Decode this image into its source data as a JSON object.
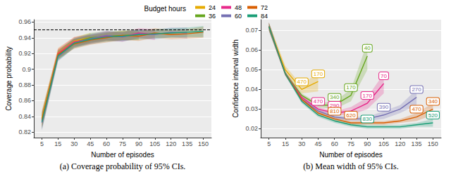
{
  "chart_data": [
    {
      "type": "line",
      "title": "(a) Coverage probability of 95% CIs.",
      "x_label": "Number of episodes",
      "y_label": "Coverage probability",
      "legend": "top",
      "legend_title": "Budget hours",
      "grid": true,
      "reference_line": 0.95,
      "categories": [
        "5",
        "15",
        "30",
        "45",
        "60",
        "75",
        "90",
        "105",
        "120",
        "135",
        "150"
      ],
      "ylim": [
        0.813,
        0.963
      ],
      "yticks": [
        0.82,
        0.84,
        0.86,
        0.88,
        0.9,
        0.92,
        0.94,
        0.96
      ],
      "series": [
        {
          "name": "24",
          "color": "#E6AB02",
          "values": [
            0.838,
            0.921,
            0.936,
            0.94,
            null,
            null,
            null,
            null,
            null,
            null,
            null
          ],
          "lower": [
            0.828,
            0.915,
            0.931,
            0.934,
            null,
            null,
            null,
            null,
            null,
            null,
            null
          ],
          "upper": [
            0.848,
            0.927,
            0.941,
            0.946,
            null,
            null,
            null,
            null,
            null,
            null,
            null
          ]
        },
        {
          "name": "36",
          "color": "#66A61E",
          "values": [
            0.835,
            0.918,
            0.934,
            0.94,
            0.942,
            0.943,
            0.944,
            null,
            null,
            null,
            null
          ],
          "lower": [
            0.825,
            0.912,
            0.928,
            0.934,
            0.936,
            0.937,
            0.937,
            null,
            null,
            null,
            null
          ],
          "upper": [
            0.845,
            0.924,
            0.94,
            0.946,
            0.948,
            0.949,
            0.951,
            null,
            null,
            null,
            null
          ]
        },
        {
          "name": "48",
          "color": "#E7298A",
          "values": [
            0.834,
            0.92,
            0.935,
            0.938,
            0.942,
            0.941,
            0.946,
            0.944,
            null,
            null,
            null
          ],
          "lower": [
            0.824,
            0.914,
            0.929,
            0.932,
            0.936,
            0.935,
            0.94,
            0.937,
            null,
            null,
            null
          ],
          "upper": [
            0.844,
            0.926,
            0.941,
            0.944,
            0.948,
            0.947,
            0.952,
            0.951,
            null,
            null,
            null
          ]
        },
        {
          "name": "60",
          "color": "#7570B3",
          "values": [
            0.832,
            0.916,
            0.933,
            0.939,
            0.943,
            0.941,
            0.945,
            0.944,
            0.947,
            0.946,
            null
          ],
          "lower": [
            0.822,
            0.91,
            0.927,
            0.933,
            0.937,
            0.935,
            0.939,
            0.938,
            0.941,
            0.939,
            null
          ],
          "upper": [
            0.842,
            0.922,
            0.939,
            0.945,
            0.949,
            0.947,
            0.951,
            0.95,
            0.953,
            0.953,
            null
          ]
        },
        {
          "name": "72",
          "color": "#D95F02",
          "values": [
            0.836,
            0.919,
            0.932,
            0.937,
            0.94,
            0.943,
            0.942,
            0.946,
            0.944,
            0.945,
            0.947
          ],
          "lower": [
            0.826,
            0.913,
            0.926,
            0.931,
            0.934,
            0.937,
            0.936,
            0.94,
            0.938,
            0.939,
            0.94
          ],
          "upper": [
            0.846,
            0.925,
            0.938,
            0.943,
            0.946,
            0.949,
            0.948,
            0.952,
            0.95,
            0.951,
            0.954
          ]
        },
        {
          "name": "84",
          "color": "#1B9E77",
          "values": [
            0.833,
            0.917,
            0.933,
            0.938,
            0.941,
            0.942,
            0.944,
            0.945,
            0.946,
            0.947,
            0.948
          ],
          "lower": [
            0.823,
            0.911,
            0.927,
            0.932,
            0.935,
            0.936,
            0.938,
            0.939,
            0.94,
            0.941,
            0.941
          ],
          "upper": [
            0.843,
            0.923,
            0.939,
            0.944,
            0.947,
            0.948,
            0.95,
            0.951,
            0.952,
            0.953,
            0.955
          ]
        }
      ]
    },
    {
      "type": "line",
      "title": "(b) Mean width of 95% CIs.",
      "x_label": "Number of episodes",
      "y_label": "Confidence interval width",
      "grid": true,
      "categories": [
        "5",
        "15",
        "30",
        "45",
        "60",
        "75",
        "90",
        "105",
        "120",
        "135",
        "150"
      ],
      "ylim": [
        0.0155,
        0.0755
      ],
      "yticks": [
        0.02,
        0.03,
        0.04,
        0.05,
        0.06,
        0.07
      ],
      "series": [
        {
          "name": "24",
          "color": "#E6AB02",
          "values": [
            0.072,
            0.05,
            0.04,
            0.044,
            null,
            null,
            null,
            null,
            null,
            null,
            null
          ],
          "lower": [
            0.07,
            0.048,
            0.038,
            0.039,
            null,
            null,
            null,
            null,
            null,
            null,
            null
          ],
          "upper": [
            0.074,
            0.052,
            0.042,
            0.049,
            null,
            null,
            null,
            null,
            null,
            null,
            null
          ],
          "point_labels": [
            null,
            null,
            470,
            170,
            null,
            null,
            null,
            null,
            null,
            null,
            null
          ]
        },
        {
          "name": "36",
          "color": "#66A61E",
          "values": [
            0.072,
            0.048,
            0.037,
            0.032,
            0.032,
            0.037,
            0.057,
            null,
            null,
            null,
            null
          ],
          "lower": [
            0.07,
            0.047,
            0.036,
            0.031,
            0.03,
            0.034,
            0.05,
            null,
            null,
            null,
            null
          ],
          "upper": [
            0.074,
            0.049,
            0.038,
            0.033,
            0.034,
            0.04,
            0.064,
            null,
            null,
            null,
            null
          ],
          "point_labels": [
            null,
            null,
            null,
            null,
            340,
            170,
            40,
            null,
            null,
            null,
            null
          ]
        },
        {
          "name": "48",
          "color": "#E7298A",
          "values": [
            0.072,
            0.048,
            0.036,
            0.03,
            0.028,
            0.029,
            0.033,
            0.043,
            null,
            null,
            null
          ],
          "lower": [
            0.07,
            0.047,
            0.035,
            0.029,
            0.027,
            0.027,
            0.03,
            0.038,
            null,
            null,
            null
          ],
          "upper": [
            0.074,
            0.049,
            0.037,
            0.031,
            0.029,
            0.031,
            0.036,
            0.048,
            null,
            null,
            null
          ],
          "point_labels": [
            null,
            null,
            null,
            470,
            290,
            null,
            170,
            70,
            null,
            null,
            null
          ]
        },
        {
          "name": "60",
          "color": "#7570B3",
          "values": [
            0.072,
            0.048,
            0.035,
            0.029,
            0.026,
            0.025,
            0.025,
            0.027,
            0.03,
            0.036,
            null
          ],
          "lower": [
            0.07,
            0.047,
            0.034,
            0.028,
            0.025,
            0.024,
            0.024,
            0.025,
            0.028,
            0.032,
            null
          ],
          "upper": [
            0.074,
            0.049,
            0.036,
            0.03,
            0.027,
            0.026,
            0.026,
            0.029,
            0.032,
            0.04,
            null
          ],
          "point_labels": [
            null,
            null,
            null,
            null,
            null,
            null,
            null,
            390,
            null,
            270,
            null
          ]
        },
        {
          "name": "72",
          "color": "#D95F02",
          "values": [
            0.072,
            0.048,
            0.035,
            0.028,
            0.025,
            0.023,
            0.023,
            0.023,
            0.024,
            0.026,
            0.03
          ],
          "lower": [
            0.07,
            0.047,
            0.034,
            0.027,
            0.024,
            0.022,
            0.022,
            0.022,
            0.023,
            0.024,
            0.027
          ],
          "upper": [
            0.074,
            0.049,
            0.036,
            0.029,
            0.026,
            0.024,
            0.024,
            0.024,
            0.025,
            0.028,
            0.033
          ],
          "point_labels": [
            null,
            null,
            null,
            null,
            810,
            620,
            null,
            null,
            null,
            470,
            340
          ]
        },
        {
          "name": "84",
          "color": "#1B9E77",
          "values": [
            0.072,
            0.048,
            0.034,
            0.027,
            0.024,
            0.022,
            0.021,
            0.021,
            0.021,
            0.022,
            0.023
          ],
          "lower": [
            0.07,
            0.047,
            0.033,
            0.026,
            0.023,
            0.021,
            0.02,
            0.02,
            0.02,
            0.021,
            0.021
          ],
          "upper": [
            0.074,
            0.049,
            0.035,
            0.028,
            0.025,
            0.023,
            0.022,
            0.022,
            0.022,
            0.023,
            0.025
          ],
          "point_labels": [
            null,
            null,
            null,
            null,
            null,
            null,
            830,
            null,
            null,
            null,
            520
          ]
        }
      ]
    }
  ]
}
